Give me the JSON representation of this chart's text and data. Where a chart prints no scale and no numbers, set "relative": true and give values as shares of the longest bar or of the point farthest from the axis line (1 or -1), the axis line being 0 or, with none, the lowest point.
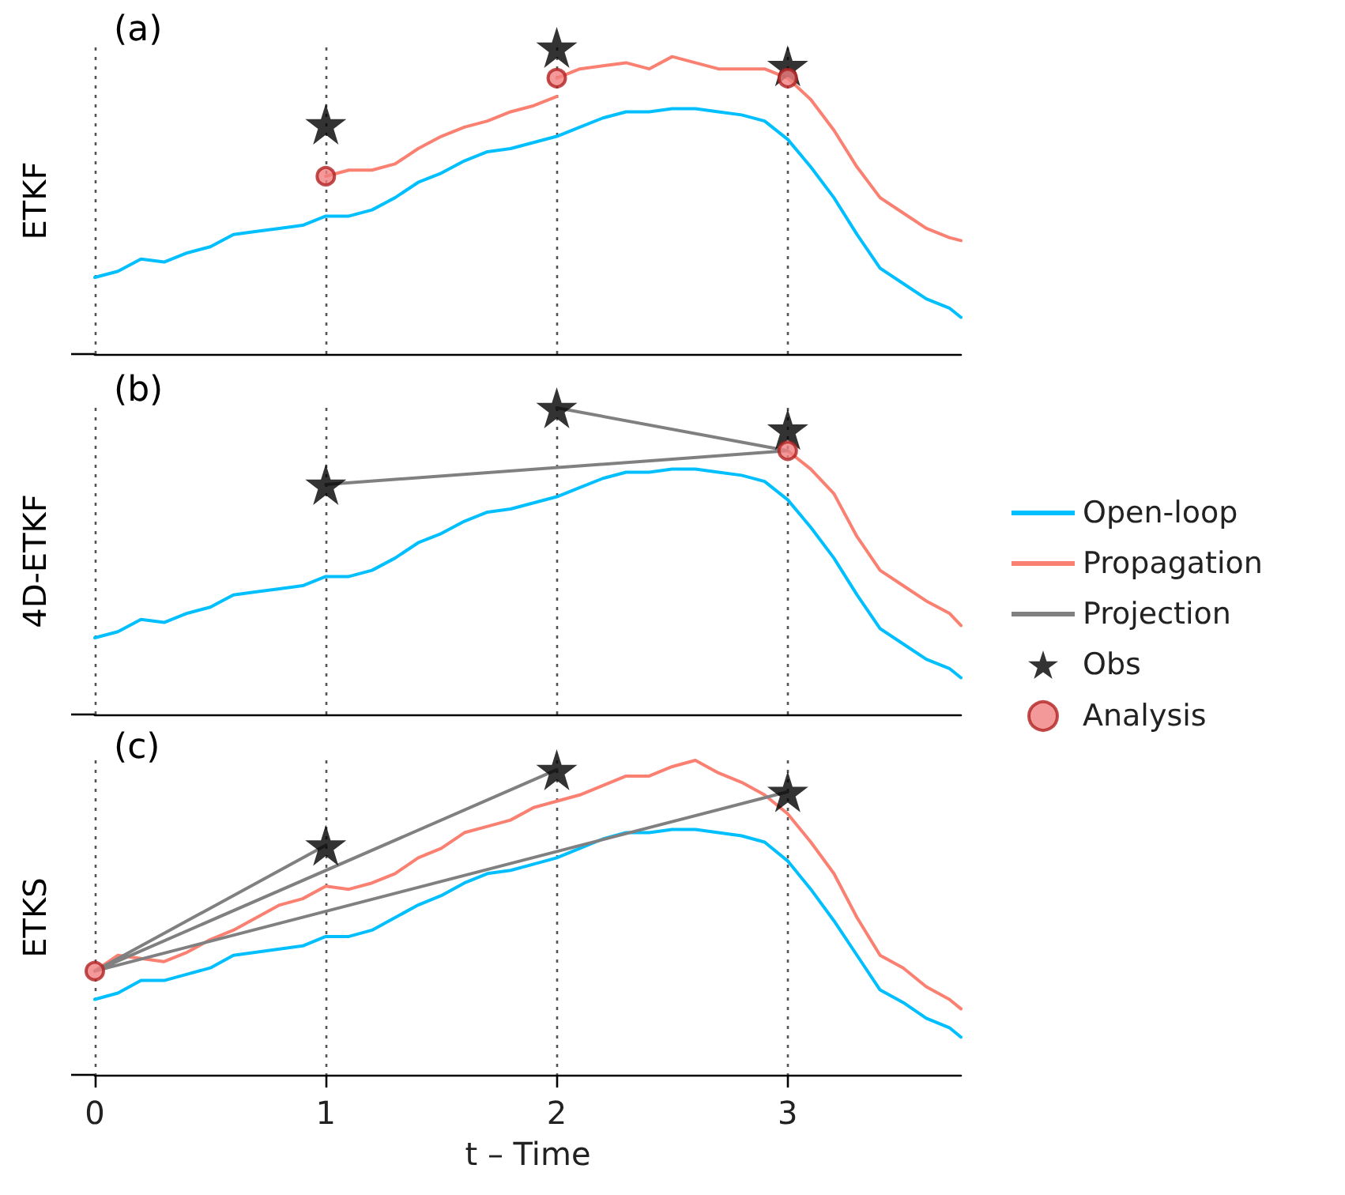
{
  "chart_data": [
    {
      "type": "line",
      "ylabel": "ETKF",
      "annotations": [
        "(a)"
      ],
      "relative": true,
      "xlim": [
        0,
        3.75
      ],
      "xticks": [
        0,
        1,
        2,
        3
      ],
      "grid": "x",
      "legend": false,
      "tick_labels": false,
      "series": [
        {
          "color": "#00bfff",
          "marker": "none",
          "x": [
            0,
            0.1,
            0.2,
            0.3,
            0.4,
            0.5,
            0.6,
            0.7,
            0.8,
            0.9,
            1.0,
            1.1,
            1.2,
            1.3,
            1.4,
            1.5,
            1.6,
            1.7,
            1.8,
            1.9,
            2.0,
            2.1,
            2.2,
            2.3,
            2.4,
            2.5,
            2.6,
            2.7,
            2.8,
            2.9,
            3.0,
            3.1,
            3.2,
            3.3,
            3.4,
            3.5,
            3.6,
            3.7,
            3.75
          ],
          "values": [
            0.25,
            0.27,
            0.31,
            0.3,
            0.33,
            0.35,
            0.39,
            0.4,
            0.41,
            0.42,
            0.45,
            0.45,
            0.47,
            0.51,
            0.56,
            0.59,
            0.63,
            0.66,
            0.67,
            0.69,
            0.71,
            0.74,
            0.77,
            0.79,
            0.79,
            0.8,
            0.8,
            0.79,
            0.78,
            0.76,
            0.7,
            0.61,
            0.51,
            0.39,
            0.28,
            0.23,
            0.18,
            0.15,
            0.12
          ]
        },
        {
          "color": "#fa8072",
          "marker": "none",
          "x": [
            1.0,
            1.1,
            1.2,
            1.3,
            1.4,
            1.5,
            1.6,
            1.7,
            1.8,
            1.9,
            2.0
          ],
          "values": [
            0.58,
            0.6,
            0.6,
            0.62,
            0.67,
            0.71,
            0.74,
            0.76,
            0.79,
            0.81,
            0.84
          ]
        },
        {
          "color": "#fa8072",
          "marker": "none",
          "x": [
            2.0,
            2.1,
            2.2,
            2.3,
            2.4,
            2.5,
            2.6,
            2.7,
            2.8,
            2.9,
            3.0,
            3.1,
            3.2,
            3.3,
            3.4,
            3.5,
            3.6,
            3.7,
            3.75
          ],
          "values": [
            0.9,
            0.93,
            0.94,
            0.95,
            0.93,
            0.97,
            0.95,
            0.93,
            0.93,
            0.93,
            0.9,
            0.83,
            0.73,
            0.61,
            0.51,
            0.46,
            0.41,
            0.38,
            0.37
          ]
        },
        {
          "type": "scatter",
          "color": "#000000",
          "marker": "star",
          "x": [
            1,
            2,
            3
          ],
          "values": [
            0.75,
            1.0,
            0.94
          ]
        },
        {
          "type": "scatter",
          "color": "#f08080",
          "marker": "circle",
          "x": [
            1,
            2,
            3
          ],
          "values": [
            0.58,
            0.9,
            0.9
          ]
        }
      ]
    },
    {
      "type": "line",
      "ylabel": "4D-ETKF",
      "annotations": [
        "(b)"
      ],
      "relative": true,
      "xlim": [
        0,
        3.75
      ],
      "xticks": [
        0,
        1,
        2,
        3
      ],
      "grid": "x",
      "legend": "right",
      "tick_labels": false,
      "series": [
        {
          "name": "Open-loop",
          "color": "#00bfff",
          "marker": "none",
          "x": [
            0,
            0.1,
            0.2,
            0.3,
            0.4,
            0.5,
            0.6,
            0.7,
            0.8,
            0.9,
            1.0,
            1.1,
            1.2,
            1.3,
            1.4,
            1.5,
            1.6,
            1.7,
            1.8,
            1.9,
            2.0,
            2.1,
            2.2,
            2.3,
            2.4,
            2.5,
            2.6,
            2.7,
            2.8,
            2.9,
            3.0,
            3.1,
            3.2,
            3.3,
            3.4,
            3.5,
            3.6,
            3.7,
            3.75
          ],
          "values": [
            0.25,
            0.27,
            0.31,
            0.3,
            0.33,
            0.35,
            0.39,
            0.4,
            0.41,
            0.42,
            0.45,
            0.45,
            0.47,
            0.51,
            0.56,
            0.59,
            0.63,
            0.66,
            0.67,
            0.69,
            0.71,
            0.74,
            0.77,
            0.79,
            0.79,
            0.8,
            0.8,
            0.79,
            0.78,
            0.76,
            0.7,
            0.61,
            0.51,
            0.39,
            0.28,
            0.23,
            0.18,
            0.15,
            0.12
          ]
        },
        {
          "name": "Propagation",
          "color": "#fa8072",
          "marker": "none",
          "x": [
            3.0,
            3.1,
            3.2,
            3.3,
            3.4,
            3.5,
            3.6,
            3.7,
            3.75
          ],
          "values": [
            0.86,
            0.8,
            0.72,
            0.58,
            0.47,
            0.42,
            0.37,
            0.33,
            0.29
          ]
        },
        {
          "name": "Projection",
          "color": "#808080",
          "marker": "none",
          "x": [
            1,
            3,
            2
          ],
          "values": [
            0.75,
            0.86,
            1.0
          ]
        },
        {
          "name": "Obs",
          "type": "scatter",
          "color": "#000000",
          "marker": "star",
          "x": [
            1,
            2,
            3
          ],
          "values": [
            0.75,
            1.0,
            0.93
          ]
        },
        {
          "name": "Analysis",
          "type": "scatter",
          "color": "#f08080",
          "marker": "circle",
          "x": [
            3
          ],
          "values": [
            0.86
          ]
        }
      ]
    },
    {
      "type": "line",
      "ylabel": "ETKS",
      "xlabel": "t – Time",
      "annotations": [
        "(c)"
      ],
      "relative": true,
      "xlim": [
        0,
        3.75
      ],
      "xticks": [
        0,
        1,
        2,
        3
      ],
      "grid": "x",
      "legend": false,
      "tick_labels": "x",
      "series": [
        {
          "color": "#00bfff",
          "marker": "none",
          "x": [
            0,
            0.1,
            0.2,
            0.3,
            0.4,
            0.5,
            0.6,
            0.7,
            0.8,
            0.9,
            1.0,
            1.1,
            1.2,
            1.3,
            1.4,
            1.5,
            1.6,
            1.7,
            1.8,
            1.9,
            2.0,
            2.1,
            2.2,
            2.3,
            2.4,
            2.5,
            2.6,
            2.7,
            2.8,
            2.9,
            3.0,
            3.1,
            3.2,
            3.3,
            3.4,
            3.5,
            3.6,
            3.7,
            3.75
          ],
          "values": [
            0.24,
            0.26,
            0.3,
            0.3,
            0.32,
            0.34,
            0.38,
            0.39,
            0.4,
            0.41,
            0.44,
            0.44,
            0.46,
            0.5,
            0.54,
            0.57,
            0.61,
            0.64,
            0.65,
            0.67,
            0.69,
            0.72,
            0.75,
            0.77,
            0.77,
            0.78,
            0.78,
            0.77,
            0.76,
            0.74,
            0.68,
            0.59,
            0.49,
            0.38,
            0.27,
            0.23,
            0.18,
            0.15,
            0.12
          ]
        },
        {
          "color": "#fa8072",
          "marker": "none",
          "x": [
            0,
            0.1,
            0.2,
            0.3,
            0.4,
            0.5,
            0.6,
            0.7,
            0.8,
            0.9,
            1.0,
            1.1,
            1.2,
            1.3,
            1.4,
            1.5,
            1.6,
            1.7,
            1.8,
            1.9,
            2.0,
            2.1,
            2.2,
            2.3,
            2.4,
            2.5,
            2.6,
            2.7,
            2.8,
            2.9,
            3.0,
            3.1,
            3.2,
            3.3,
            3.4,
            3.5,
            3.6,
            3.7,
            3.75
          ],
          "values": [
            0.33,
            0.38,
            0.37,
            0.36,
            0.39,
            0.43,
            0.46,
            0.5,
            0.54,
            0.56,
            0.6,
            0.59,
            0.61,
            0.64,
            0.69,
            0.72,
            0.77,
            0.79,
            0.81,
            0.85,
            0.87,
            0.89,
            0.92,
            0.95,
            0.95,
            0.98,
            1.0,
            0.96,
            0.93,
            0.89,
            0.83,
            0.74,
            0.64,
            0.5,
            0.38,
            0.34,
            0.28,
            0.24,
            0.21
          ]
        },
        {
          "color": "#808080",
          "marker": "none",
          "x": [
            1,
            0,
            2,
            0,
            3
          ],
          "values": [
            0.73,
            0.33,
            0.97,
            0.33,
            0.9
          ]
        },
        {
          "type": "scatter",
          "color": "#000000",
          "marker": "star",
          "x": [
            1,
            2,
            3
          ],
          "values": [
            0.73,
            0.97,
            0.9
          ]
        },
        {
          "type": "scatter",
          "color": "#f08080",
          "marker": "circle",
          "x": [
            0
          ],
          "values": [
            0.33
          ]
        }
      ]
    }
  ]
}
